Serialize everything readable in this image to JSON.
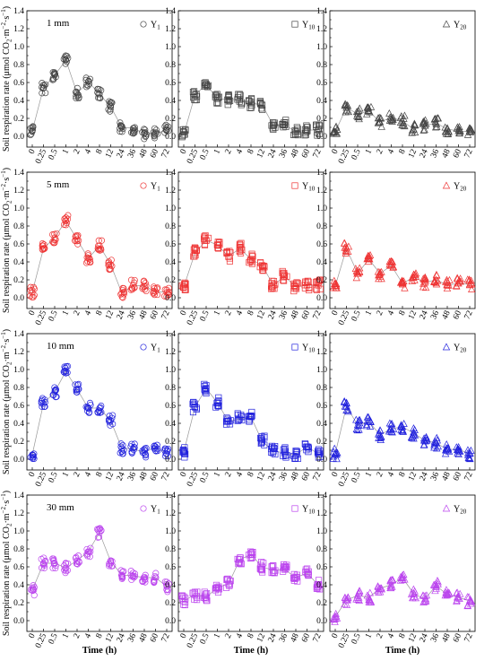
{
  "figure": {
    "ylabel_main": "Soil respiration rate (μmol CO",
    "ylabel_sub1": "2",
    "ylabel_mid": "·m",
    "ylabel_sup1": "−2",
    "ylabel_mid2": "·s",
    "ylabel_sup2": "−1",
    "ylabel_end": ")",
    "xlabel": "Time (h)",
    "x_ticks": [
      "0",
      "0.25",
      "0.5",
      "1",
      "2",
      "4",
      "8",
      "12",
      "24",
      "36",
      "48",
      "60",
      "72"
    ],
    "y_ticks": [
      "0.0",
      "0.2",
      "0.4",
      "0.6",
      "0.8",
      "1.0",
      "1.2",
      "1.4"
    ],
    "ylim": [
      -0.12,
      1.4
    ],
    "rows": [
      {
        "label": "1 mm",
        "color": "#444444"
      },
      {
        "label": "5 mm",
        "color": "#ee3333"
      },
      {
        "label": "10 mm",
        "color": "#2222dd"
      },
      {
        "label": "30 mm",
        "color": "#bb44ee"
      }
    ],
    "columns": [
      {
        "legend_base": "Y",
        "legend_sub": "1",
        "marker": "circle"
      },
      {
        "legend_base": "Y",
        "legend_sub": "10",
        "marker": "square"
      },
      {
        "legend_base": "Y",
        "legend_sub": "20",
        "marker": "triangle"
      }
    ]
  },
  "chart_data": [
    {
      "type": "line",
      "row": 0,
      "col": 0,
      "x": [
        "0",
        "0.25",
        "0.5",
        "1",
        "2",
        "4",
        "8",
        "12",
        "24",
        "36",
        "48",
        "60",
        "72"
      ],
      "values": [
        0.06,
        0.54,
        0.68,
        0.85,
        0.48,
        0.61,
        0.47,
        0.33,
        0.1,
        0.09,
        0.03,
        0.03,
        0.07
      ]
    },
    {
      "type": "line",
      "row": 0,
      "col": 1,
      "x": [
        "0",
        "0.25",
        "0.5",
        "1",
        "2",
        "4",
        "8",
        "12",
        "24",
        "36",
        "48",
        "60",
        "72"
      ],
      "values": [
        0.02,
        0.46,
        0.58,
        0.42,
        0.41,
        0.41,
        0.37,
        0.35,
        0.12,
        0.13,
        0.05,
        0.07,
        0.07
      ]
    },
    {
      "type": "line",
      "row": 0,
      "col": 2,
      "x": [
        "0",
        "0.25",
        "0.5",
        "1",
        "2",
        "4",
        "8",
        "12",
        "24",
        "36",
        "48",
        "60",
        "72"
      ],
      "values": [
        0.05,
        0.32,
        0.25,
        0.28,
        0.16,
        0.21,
        0.17,
        0.08,
        0.12,
        0.15,
        0.08,
        0.06,
        0.05
      ]
    },
    {
      "type": "line",
      "row": 1,
      "col": 0,
      "x": [
        "0",
        "0.25",
        "0.5",
        "1",
        "2",
        "4",
        "8",
        "12",
        "24",
        "36",
        "48",
        "60",
        "72"
      ],
      "values": [
        0.06,
        0.55,
        0.67,
        0.86,
        0.65,
        0.44,
        0.58,
        0.37,
        0.05,
        0.14,
        0.13,
        0.07,
        0.06
      ]
    },
    {
      "type": "line",
      "row": 1,
      "col": 1,
      "x": [
        "0",
        "0.25",
        "0.5",
        "1",
        "2",
        "4",
        "8",
        "12",
        "24",
        "36",
        "48",
        "60",
        "72"
      ],
      "values": [
        0.12,
        0.5,
        0.64,
        0.59,
        0.46,
        0.55,
        0.43,
        0.36,
        0.14,
        0.24,
        0.12,
        0.14,
        0.14
      ]
    },
    {
      "type": "line",
      "row": 1,
      "col": 2,
      "x": [
        "0",
        "0.25",
        "0.5",
        "1",
        "2",
        "4",
        "8",
        "12",
        "24",
        "36",
        "48",
        "60",
        "72"
      ],
      "values": [
        0.13,
        0.55,
        0.27,
        0.43,
        0.27,
        0.36,
        0.16,
        0.23,
        0.17,
        0.2,
        0.14,
        0.16,
        0.15
      ]
    },
    {
      "type": "line",
      "row": 2,
      "col": 0,
      "x": [
        "0",
        "0.25",
        "0.5",
        "1",
        "2",
        "4",
        "8",
        "12",
        "24",
        "36",
        "48",
        "60",
        "72"
      ],
      "values": [
        0.05,
        0.62,
        0.75,
        0.98,
        0.78,
        0.57,
        0.57,
        0.43,
        0.12,
        0.12,
        0.07,
        0.14,
        0.06
      ]
    },
    {
      "type": "line",
      "row": 2,
      "col": 1,
      "x": [
        "0",
        "0.25",
        "0.5",
        "1",
        "2",
        "4",
        "8",
        "12",
        "24",
        "36",
        "48",
        "60",
        "72"
      ],
      "values": [
        0.08,
        0.58,
        0.79,
        0.63,
        0.42,
        0.45,
        0.47,
        0.2,
        0.09,
        0.07,
        0.05,
        0.14,
        0.06
      ]
    },
    {
      "type": "line",
      "row": 2,
      "col": 2,
      "x": [
        "0",
        "0.25",
        "0.5",
        "1",
        "2",
        "4",
        "8",
        "12",
        "24",
        "36",
        "48",
        "60",
        "72"
      ],
      "values": [
        0.06,
        0.59,
        0.38,
        0.42,
        0.27,
        0.34,
        0.36,
        0.29,
        0.21,
        0.18,
        0.11,
        0.11,
        0.06
      ]
    },
    {
      "type": "line",
      "row": 3,
      "col": 0,
      "x": [
        "0",
        "0.25",
        "0.5",
        "1",
        "2",
        "4",
        "8",
        "12",
        "24",
        "36",
        "48",
        "60",
        "72"
      ],
      "values": [
        0.34,
        0.64,
        0.64,
        0.59,
        0.67,
        0.77,
        0.98,
        0.66,
        0.51,
        0.5,
        0.48,
        0.48,
        0.38
      ]
    },
    {
      "type": "line",
      "row": 3,
      "col": 1,
      "x": [
        "0",
        "0.25",
        "0.5",
        "1",
        "2",
        "4",
        "8",
        "12",
        "24",
        "36",
        "48",
        "60",
        "72"
      ],
      "values": [
        0.22,
        0.29,
        0.26,
        0.37,
        0.41,
        0.68,
        0.74,
        0.6,
        0.56,
        0.57,
        0.48,
        0.53,
        0.4
      ]
    },
    {
      "type": "line",
      "row": 3,
      "col": 2,
      "x": [
        "0",
        "0.25",
        "0.5",
        "1",
        "2",
        "4",
        "8",
        "12",
        "24",
        "36",
        "48",
        "60",
        "72"
      ],
      "values": [
        0.04,
        0.23,
        0.28,
        0.26,
        0.36,
        0.4,
        0.48,
        0.3,
        0.24,
        0.39,
        0.29,
        0.26,
        0.22
      ]
    }
  ]
}
